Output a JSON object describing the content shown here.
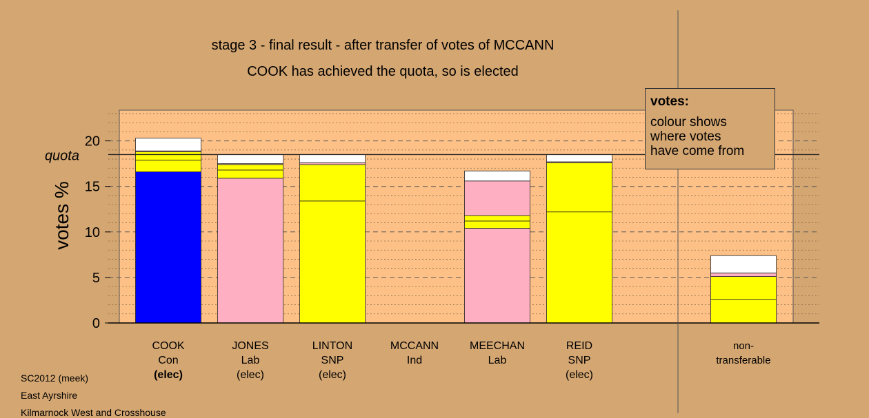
{
  "titles": {
    "line1": "stage 3 - final result - after transfer of votes of MCCANN",
    "line2": "COOK has achieved the quota, so is elected"
  },
  "legend": {
    "title": "votes:",
    "lines": [
      "colour shows",
      "where votes",
      "have come from"
    ]
  },
  "footer": [
    "SC2012 (meek)",
    "East Ayrshire",
    "Kilmarnock West and Crosshouse"
  ],
  "colors": {
    "background": "#d4a672",
    "plot_background": "#fdc187",
    "Con": "#0000ff",
    "Lab": "#ffafc2",
    "SNP": "#ffff00",
    "transfer": "#ffffff"
  },
  "chart_data": {
    "type": "bar",
    "stacked": true,
    "ylabel": "votes %",
    "ylim": [
      0,
      23.5
    ],
    "yticks": [
      0,
      5,
      10,
      15,
      20
    ],
    "quota": 18.5,
    "quota_label": "quota",
    "grid": true,
    "categories": [
      {
        "name": "COOK",
        "party": "Con",
        "status": "(elec)",
        "status_bold": true
      },
      {
        "name": "JONES",
        "party": "Lab",
        "status": "(elec)",
        "status_bold": false
      },
      {
        "name": "LINTON",
        "party": "SNP",
        "status": "(elec)",
        "status_bold": false
      },
      {
        "name": "MCCANN",
        "party": "Ind",
        "status": "",
        "status_bold": false
      },
      {
        "name": "MEECHAN",
        "party": "Lab",
        "status": "",
        "status_bold": false
      },
      {
        "name": "REID",
        "party": "SNP",
        "status": "(elec)",
        "status_bold": false
      },
      {
        "name": "",
        "party": "",
        "status": "",
        "status_bold": false
      },
      {
        "name": "non-",
        "party": "transferable",
        "status": "",
        "status_bold": false
      }
    ],
    "stacks": [
      [
        {
          "from": "Con",
          "value": 16.6
        },
        {
          "from": "SNP",
          "value": 1.3
        },
        {
          "from": "SNP",
          "value": 0.9
        },
        {
          "from": "Lab",
          "value": 0.1
        },
        {
          "from": "transfer",
          "value": 1.4
        }
      ],
      [
        {
          "from": "Lab",
          "value": 15.9
        },
        {
          "from": "SNP",
          "value": 0.9
        },
        {
          "from": "SNP",
          "value": 0.6
        },
        {
          "from": "Lab",
          "value": 0.1
        },
        {
          "from": "transfer",
          "value": 1.0
        }
      ],
      [
        {
          "from": "SNP",
          "value": 13.4
        },
        {
          "from": "SNP",
          "value": 4.0
        },
        {
          "from": "Lab",
          "value": 0.2
        },
        {
          "from": "transfer",
          "value": 0.9
        }
      ],
      [],
      [
        {
          "from": "Lab",
          "value": 10.4
        },
        {
          "from": "SNP",
          "value": 0.8
        },
        {
          "from": "SNP",
          "value": 0.6
        },
        {
          "from": "Lab",
          "value": 3.8
        },
        {
          "from": "transfer",
          "value": 1.1
        }
      ],
      [
        {
          "from": "SNP",
          "value": 12.2
        },
        {
          "from": "SNP",
          "value": 5.4
        },
        {
          "from": "Lab",
          "value": 0.1
        },
        {
          "from": "transfer",
          "value": 0.8
        }
      ],
      [],
      [
        {
          "from": "SNP",
          "value": 2.6
        },
        {
          "from": "SNP",
          "value": 2.5
        },
        {
          "from": "Lab",
          "value": 0.4
        },
        {
          "from": "transfer",
          "value": 1.9
        }
      ]
    ]
  }
}
